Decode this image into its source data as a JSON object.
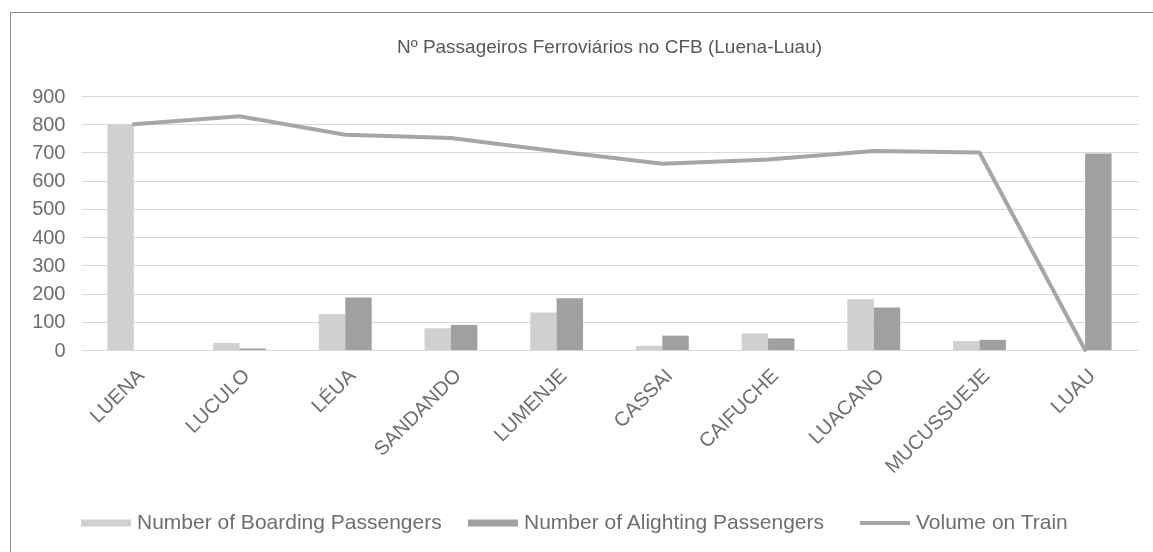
{
  "chart_data": {
    "type": "bar",
    "title": "Nº Passageiros Ferroviários no CFB (Luena-Luau)",
    "categories": [
      "LUENA",
      "LUCULO",
      "LÉUA",
      "SANDANDO",
      "LUMENJE",
      "CASSAI",
      "CAIFUCHE",
      "LUACANO",
      "MUCUSSUEJE",
      "LUAU"
    ],
    "series": [
      {
        "name": "Number of Boarding Passengers",
        "type": "bar",
        "color": "#d0d0d0",
        "values": [
          800,
          25,
          127,
          77,
          133,
          15,
          59,
          180,
          32,
          null
        ]
      },
      {
        "name": "Number of Alighting Passengers",
        "type": "bar",
        "color": "#a0a0a0",
        "values": [
          null,
          5,
          186,
          89,
          183,
          51,
          41,
          151,
          36,
          696
        ]
      },
      {
        "name": "Volume on Train",
        "type": "line",
        "color": "#a6a6a6",
        "values": [
          800,
          828,
          763,
          751,
          704,
          660,
          675,
          705,
          700,
          0
        ]
      }
    ],
    "ylim": [
      0,
      900
    ],
    "yticks": [
      0,
      100,
      200,
      300,
      400,
      500,
      600,
      700,
      800,
      900
    ],
    "grid": "y",
    "legend": "bottom"
  }
}
